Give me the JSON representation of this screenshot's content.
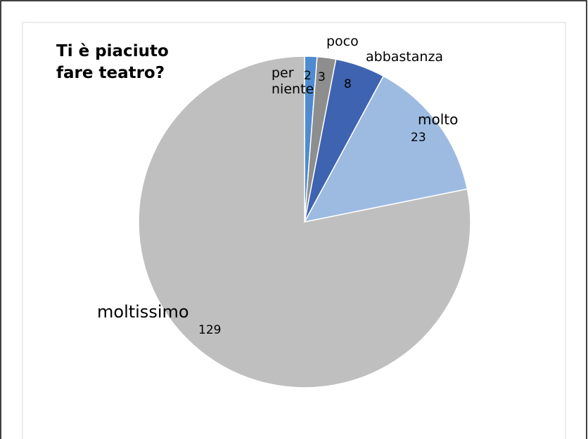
{
  "chart_data": {
    "type": "pie",
    "title": "Ti è piaciuto fare teatro?",
    "categories": [
      "per niente",
      "poco",
      "abbastanza",
      "molto",
      "moltissimo"
    ],
    "values": [
      2,
      3,
      8,
      23,
      129
    ],
    "colors": [
      "#4f8bd0",
      "#8e8e8e",
      "#3e63b0",
      "#9dbbe1",
      "#bfbfbf"
    ]
  }
}
